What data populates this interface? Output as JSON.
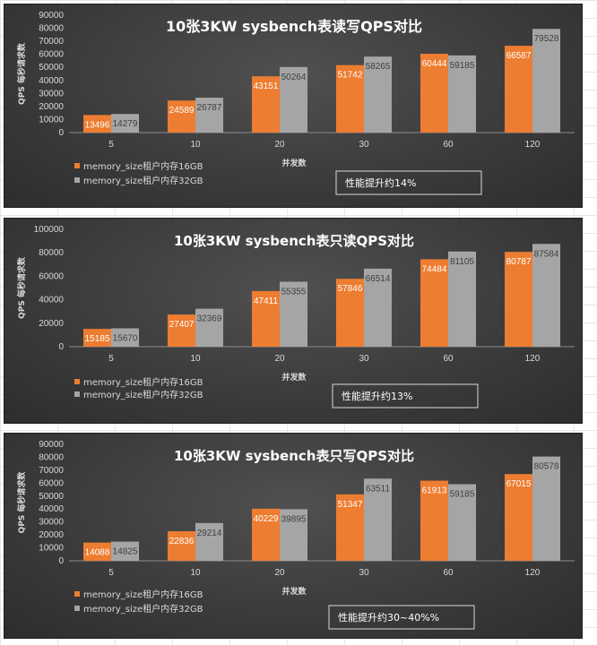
{
  "chart_data": [
    {
      "type": "bar",
      "title": "10张3KW sysbench表读写QPS对比",
      "xlabel": "并发数",
      "ylabel": "QPS 每秒请求数",
      "ylim": [
        0,
        90000
      ],
      "yticks": [
        "0",
        "10000",
        "20000",
        "30000",
        "40000",
        "50000",
        "60000",
        "70000",
        "80000",
        "90000"
      ],
      "categories": [
        "5",
        "10",
        "20",
        "30",
        "60",
        "120"
      ],
      "series": [
        {
          "name": "memory_size租户内存16GB",
          "color": "#ed7d31",
          "values": [
            13496,
            24589,
            43151,
            51742,
            60444,
            66587
          ],
          "labels": [
            "13496",
            "24589",
            "43151",
            "51742",
            "60444",
            "66587"
          ]
        },
        {
          "name": "memory_size租户内存32GB",
          "color": "#a5a5a5",
          "values": [
            14279,
            26787,
            50264,
            58265,
            59185,
            79528
          ],
          "labels": [
            "14279",
            "26787",
            "50264",
            "58265",
            "59185",
            "79528"
          ]
        }
      ],
      "legend_position": "bottom-left",
      "note": "性能提升约14%"
    },
    {
      "type": "bar",
      "title": "10张3KW sysbench表只读QPS对比",
      "xlabel": "并发数",
      "ylabel": "QPS 每秒请求数",
      "ylim": [
        0,
        100000
      ],
      "yticks": [
        "0",
        "20000",
        "40000",
        "60000",
        "80000",
        "100000"
      ],
      "categories": [
        "5",
        "10",
        "20",
        "30",
        "60",
        "120"
      ],
      "series": [
        {
          "name": "memory_size租户内存16GB",
          "color": "#ed7d31",
          "values": [
            15185,
            27407,
            47411,
            57846,
            74484,
            80787
          ],
          "labels": [
            "15185",
            "27407",
            "47411",
            "57846",
            "74484",
            "80787"
          ]
        },
        {
          "name": "memory_size租户内存32GB",
          "color": "#a5a5a5",
          "values": [
            15670,
            32369,
            55355,
            66514,
            81105,
            87584
          ],
          "labels": [
            "15670",
            "32369",
            "55355",
            "66514",
            "81105",
            "87584"
          ]
        }
      ],
      "legend_position": "bottom-left",
      "note": "性能提升约13%"
    },
    {
      "type": "bar",
      "title": "10张3KW sysbench表只写QPS对比",
      "xlabel": "并发数",
      "ylabel": "QPS 每秒请求数",
      "ylim": [
        0,
        90000
      ],
      "yticks": [
        "0",
        "10000",
        "20000",
        "30000",
        "40000",
        "50000",
        "60000",
        "70000",
        "80000",
        "90000"
      ],
      "categories": [
        "5",
        "10",
        "20",
        "30",
        "60",
        "120"
      ],
      "series": [
        {
          "name": "memory_size租户内存16GB",
          "color": "#ed7d31",
          "values": [
            14088,
            22836,
            40229,
            51347,
            61913,
            67015
          ],
          "labels": [
            "14088",
            "22836",
            "40229",
            "51347",
            "61913",
            "67015"
          ]
        },
        {
          "name": "memory_size租户内存32GB",
          "color": "#a5a5a5",
          "values": [
            14825,
            29214,
            39895,
            63511,
            59185,
            80578
          ],
          "labels": [
            "14825",
            "29214",
            "39895",
            "63511",
            "59185",
            "80578"
          ]
        }
      ],
      "legend_position": "bottom-left",
      "note": "性能提升约30~40%%"
    }
  ]
}
